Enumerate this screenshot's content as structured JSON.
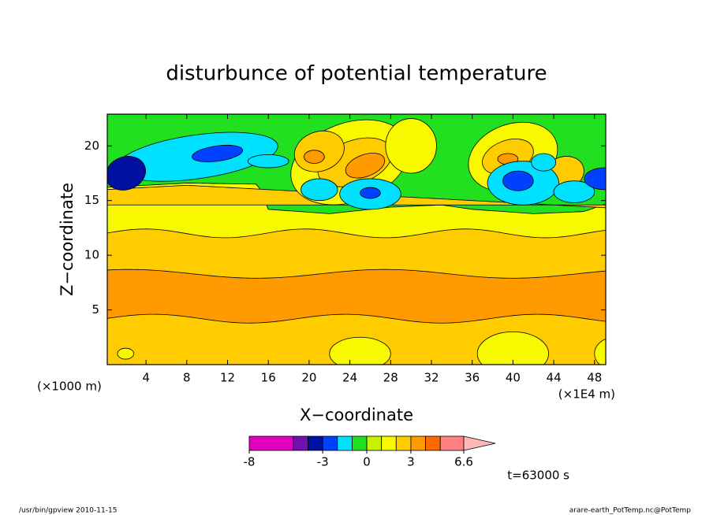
{
  "chart_data": {
    "type": "contour",
    "title": "disturbunce of potential temperature",
    "x_label": "X−coordinate",
    "y_label": "Z−coordinate",
    "x_unit": "(×1E4 m)",
    "y_unit": "(×1000 m)",
    "xlim": [
      0.2,
      49.1
    ],
    "ylim": [
      0,
      22.9
    ],
    "xticks": [
      4,
      8,
      12,
      16,
      20,
      24,
      28,
      32,
      36,
      40,
      44,
      48
    ],
    "yticks": [
      5,
      10,
      15,
      20
    ],
    "levels": [
      -8,
      -5,
      -4,
      -3,
      -2,
      -1,
      0,
      1,
      2,
      3,
      4,
      5,
      6.6
    ],
    "colors": [
      "#e000c0",
      "#7010b0",
      "#0010a0",
      "#0040ff",
      "#00e0ff",
      "#20e020",
      "#c8f000",
      "#f8f800",
      "#ffcc00",
      "#ff9a00",
      "#ff6a00",
      "#ff8080"
    ],
    "extend_color": "#ffb8b8",
    "colorbar_ticks": [
      -8,
      -3,
      0,
      3,
      6.6
    ],
    "time_label": "t=63000 s",
    "footer_left": "/usr/bin/gpview   2010-11-15",
    "footer_right": "arare-earth_PotTemp.nc@PotTemp"
  }
}
